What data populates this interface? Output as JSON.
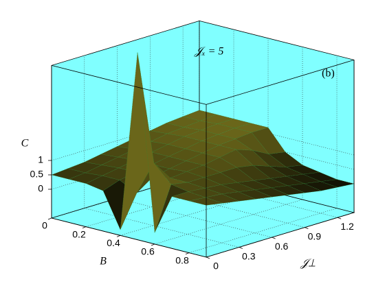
{
  "chart_data": {
    "type": "surface3d",
    "annotation": "𝒥ₓ = 5",
    "panel_label": "(b)",
    "xlabel": "B",
    "ylabel": "𝒥⊥",
    "zlabel": "C",
    "x": [
      0,
      0.1,
      0.2,
      0.3,
      0.4,
      0.5,
      0.6,
      0.7,
      0.8,
      0.9
    ],
    "y": [
      0,
      0.15,
      0.3,
      0.45,
      0.6,
      0.75,
      0.9,
      1.05,
      1.2,
      1.35
    ],
    "z": [
      [
        0.5,
        0.55,
        0.6,
        0.7,
        0.8,
        0.9,
        1.0,
        1.1,
        1.15,
        1.2
      ],
      [
        0.5,
        0.55,
        0.65,
        0.75,
        0.85,
        0.95,
        1.05,
        1.1,
        1.15,
        1.2
      ],
      [
        0.5,
        0.6,
        0.7,
        0.8,
        0.9,
        1.0,
        1.1,
        1.15,
        1.2,
        1.2
      ],
      [
        0.4,
        0.6,
        0.7,
        0.8,
        0.9,
        1.0,
        1.1,
        1.15,
        1.2,
        1.2
      ],
      [
        -0.8,
        0.3,
        0.7,
        0.8,
        0.9,
        1.0,
        1.1,
        1.15,
        1.2,
        1.2
      ],
      [
        5.5,
        1.5,
        0.8,
        0.85,
        0.9,
        1.0,
        1.1,
        0.9,
        0.6,
        0.5
      ],
      [
        -0.6,
        0.9,
        0.8,
        0.8,
        0.8,
        0.8,
        0.7,
        0.5,
        0.3,
        0.2
      ],
      [
        0.8,
        0.8,
        0.75,
        0.7,
        0.6,
        0.5,
        0.4,
        0.3,
        0.2,
        0.1
      ],
      [
        0.8,
        0.75,
        0.7,
        0.6,
        0.5,
        0.4,
        0.3,
        0.2,
        0.1,
        0.0
      ],
      [
        0.8,
        0.7,
        0.6,
        0.5,
        0.4,
        0.3,
        0.2,
        0.1,
        0.05,
        0.0
      ]
    ],
    "xlim": [
      0,
      0.9
    ],
    "ylim": [
      0,
      1.35
    ],
    "zlim": [
      -1,
      4.3
    ],
    "xticks": [
      0,
      0.2,
      0.4,
      0.6,
      0.8
    ],
    "yticks": [
      0,
      0.3,
      0.6,
      0.9,
      1.2
    ],
    "zticks": [
      0,
      0.5,
      1
    ],
    "grid": true,
    "pane_color": "#80ffff",
    "low_color": "#101004",
    "high_color": "#6a661a",
    "edge_color": "#2f8a2f"
  }
}
